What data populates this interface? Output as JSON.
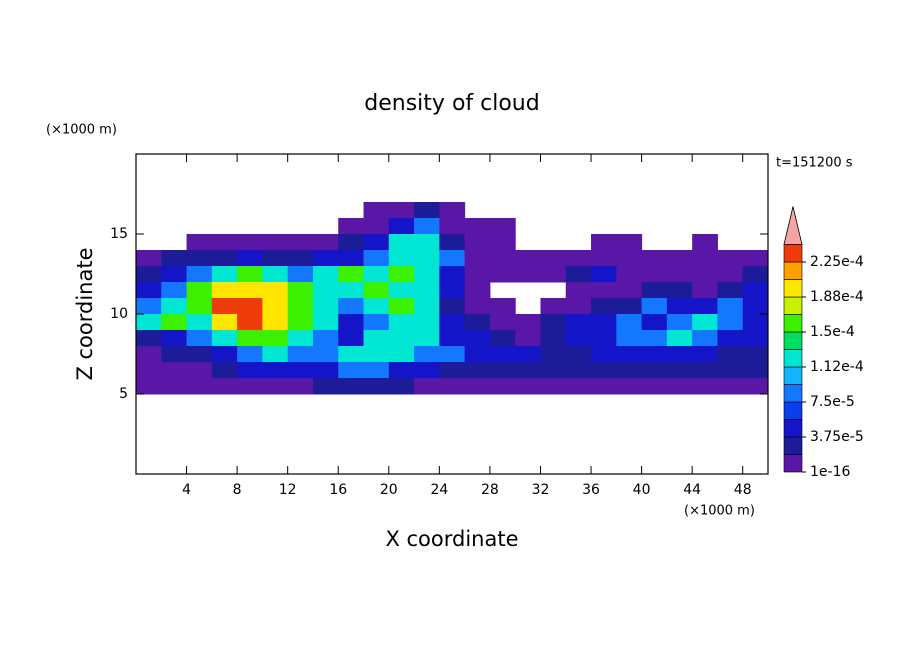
{
  "chart_data": {
    "type": "contour",
    "title": "density of cloud",
    "xlabel": "X coordinate",
    "ylabel": "Z coordinate",
    "xunit": "(×1000 m)",
    "yunit": "(×1000 m)",
    "annotation": "t=151200 s",
    "xlim": [
      0,
      50
    ],
    "ylim": [
      0,
      20
    ],
    "xticks": [
      4,
      8,
      12,
      16,
      20,
      24,
      28,
      32,
      36,
      40,
      44,
      48
    ],
    "yticks": [
      5,
      10,
      15
    ],
    "x": [
      1,
      3,
      5,
      7,
      9,
      11,
      13,
      15,
      17,
      19,
      21,
      23,
      25,
      27,
      29,
      31,
      33,
      35,
      37,
      39,
      41,
      43,
      45,
      47,
      49
    ],
    "y": [
      16.5,
      15.5,
      14.5,
      13.5,
      12.5,
      11.5,
      10.5,
      9.5,
      8.5,
      7.5,
      6.5,
      5.5
    ],
    "z": [
      [
        null,
        null,
        null,
        null,
        null,
        null,
        null,
        null,
        null,
        1e-05,
        1e-05,
        3e-05,
        1e-05,
        null,
        null,
        null,
        null,
        null,
        null,
        null,
        null,
        null,
        null,
        null,
        null
      ],
      [
        null,
        null,
        null,
        null,
        null,
        null,
        null,
        null,
        1e-05,
        1e-05,
        5e-05,
        8e-05,
        1e-05,
        1e-05,
        1e-05,
        null,
        null,
        null,
        null,
        null,
        null,
        null,
        null,
        null,
        null
      ],
      [
        null,
        null,
        1e-05,
        1e-05,
        1e-05,
        1e-05,
        1e-05,
        1e-05,
        3e-05,
        5e-05,
        0.00012,
        0.00012,
        3e-05,
        1e-05,
        1e-05,
        null,
        null,
        null,
        1e-05,
        1e-05,
        null,
        null,
        1e-05,
        null,
        null
      ],
      [
        1e-05,
        3e-05,
        3e-05,
        3e-05,
        5e-05,
        3e-05,
        3e-05,
        5e-05,
        5e-05,
        8e-05,
        0.00012,
        0.00012,
        8e-05,
        1e-05,
        1e-05,
        1e-05,
        1e-05,
        1e-05,
        1e-05,
        1e-05,
        1e-05,
        1e-05,
        1e-05,
        1e-05,
        1e-05
      ],
      [
        3e-05,
        5e-05,
        8e-05,
        0.00012,
        0.00016,
        0.00012,
        8e-05,
        0.00012,
        0.00016,
        0.00012,
        0.00016,
        0.00012,
        5e-05,
        1e-05,
        1e-05,
        1e-05,
        1e-05,
        3e-05,
        5e-05,
        1e-05,
        1e-05,
        1e-05,
        1e-05,
        1e-05,
        3e-05
      ],
      [
        5e-05,
        8e-05,
        0.00016,
        0.0002,
        0.0002,
        0.0002,
        0.00016,
        0.00012,
        0.00012,
        0.00016,
        0.00012,
        0.00012,
        5e-05,
        1e-05,
        null,
        null,
        null,
        1e-05,
        1e-05,
        1e-05,
        3e-05,
        3e-05,
        1e-05,
        3e-05,
        5e-05
      ],
      [
        8e-05,
        0.00012,
        0.00016,
        0.00023,
        0.00023,
        0.0002,
        0.00016,
        0.00012,
        8e-05,
        0.00012,
        0.00016,
        0.00012,
        3e-05,
        1e-05,
        1e-05,
        null,
        1e-05,
        1e-05,
        3e-05,
        3e-05,
        8e-05,
        5e-05,
        5e-05,
        8e-05,
        5e-05
      ],
      [
        0.00012,
        0.00016,
        0.00012,
        0.0002,
        0.00023,
        0.0002,
        0.00016,
        0.00012,
        5e-05,
        8e-05,
        0.00012,
        0.00012,
        5e-05,
        3e-05,
        1e-05,
        1e-05,
        3e-05,
        5e-05,
        5e-05,
        8e-05,
        5e-05,
        8e-05,
        0.00012,
        8e-05,
        5e-05
      ],
      [
        3e-05,
        5e-05,
        8e-05,
        0.00012,
        0.00016,
        0.00016,
        0.00012,
        8e-05,
        5e-05,
        0.00012,
        0.00012,
        0.00012,
        5e-05,
        5e-05,
        3e-05,
        1e-05,
        3e-05,
        5e-05,
        5e-05,
        8e-05,
        8e-05,
        0.00012,
        8e-05,
        5e-05,
        5e-05
      ],
      [
        1e-05,
        3e-05,
        3e-05,
        5e-05,
        8e-05,
        0.00012,
        8e-05,
        8e-05,
        0.00012,
        0.00012,
        0.00012,
        8e-05,
        8e-05,
        5e-05,
        5e-05,
        5e-05,
        3e-05,
        3e-05,
        5e-05,
        5e-05,
        5e-05,
        5e-05,
        5e-05,
        3e-05,
        3e-05
      ],
      [
        1e-05,
        1e-05,
        1e-05,
        3e-05,
        5e-05,
        5e-05,
        5e-05,
        5e-05,
        8e-05,
        8e-05,
        5e-05,
        5e-05,
        3e-05,
        3e-05,
        3e-05,
        3e-05,
        3e-05,
        3e-05,
        3e-05,
        3e-05,
        3e-05,
        3e-05,
        3e-05,
        3e-05,
        3e-05
      ],
      [
        1e-05,
        1e-05,
        1e-05,
        1e-05,
        1e-05,
        1e-05,
        1e-05,
        3e-05,
        3e-05,
        3e-05,
        3e-05,
        1e-05,
        1e-05,
        1e-05,
        1e-05,
        1e-05,
        1e-05,
        1e-05,
        1e-05,
        1e-05,
        1e-05,
        1e-05,
        1e-05,
        1e-05,
        1e-05
      ]
    ],
    "colorbar": {
      "levels": [
        1e-16,
        1.875e-05,
        3.75e-05,
        5.625e-05,
        7.5e-05,
        9.375e-05,
        0.0001125,
        0.00013125,
        0.00015,
        0.00016875,
        0.0001875,
        0.00020625,
        0.000225,
        0.00024375
      ],
      "colors": [
        "#5a16a6",
        "#1c1c98",
        "#1414c8",
        "#0a3cf0",
        "#1478ff",
        "#14b4ff",
        "#00e6d2",
        "#00dc64",
        "#3cf000",
        "#c8f000",
        "#ffe600",
        "#ffa000",
        "#f03c0a"
      ],
      "extend_color": "#f5a3a3",
      "ticks": [
        {
          "value": 1e-16,
          "label": "1e-16"
        },
        {
          "value": 3.75e-05,
          "label": "3.75e-5"
        },
        {
          "value": 7.5e-05,
          "label": "7.5e-5"
        },
        {
          "value": 0.0001125,
          "label": "1.12e-4"
        },
        {
          "value": 0.00015,
          "label": "1.5e-4"
        },
        {
          "value": 0.0001875,
          "label": "1.88e-4"
        },
        {
          "value": 0.000225,
          "label": "2.25e-4"
        }
      ]
    }
  }
}
